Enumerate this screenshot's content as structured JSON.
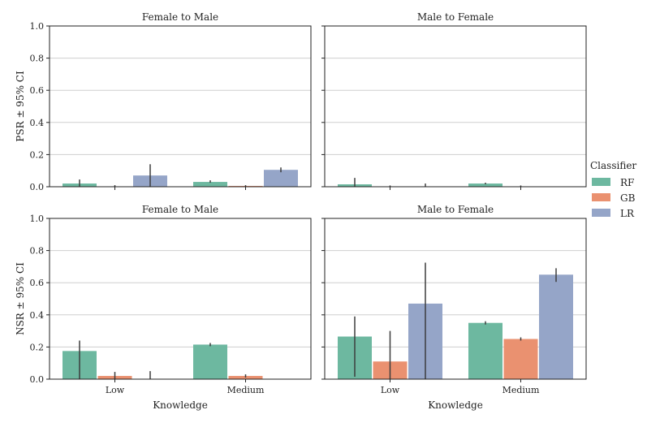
{
  "legend": {
    "title": "Classifier",
    "entries": [
      {
        "name": "RF",
        "color": "#6db8a0"
      },
      {
        "name": "GB",
        "color": "#ea9170"
      },
      {
        "name": "LR",
        "color": "#95a5c8"
      }
    ]
  },
  "chart_data": [
    {
      "type": "bar",
      "title": "Female to Male",
      "ylabel": "PSR ± 95% CI",
      "xlabel": "",
      "ylim": [
        0,
        1
      ],
      "yticks": [
        "0.0",
        "0.2",
        "0.4",
        "0.6",
        "0.8",
        "1.0"
      ],
      "grid": true,
      "categories": [
        "Low",
        "Medium"
      ],
      "series": [
        {
          "name": "RF",
          "values": [
            0.02,
            0.03
          ],
          "ci": [
            [
              0.0,
              0.045
            ],
            [
              0.025,
              0.04
            ]
          ]
        },
        {
          "name": "GB",
          "values": [
            0.0,
            0.005
          ],
          "ci": [
            [
              0.0,
              0.01
            ],
            [
              0.0,
              0.01
            ]
          ]
        },
        {
          "name": "LR",
          "values": [
            0.07,
            0.105
          ],
          "ci": [
            [
              0.0,
              0.14
            ],
            [
              0.09,
              0.12
            ]
          ]
        }
      ]
    },
    {
      "type": "bar",
      "title": "Male to Female",
      "ylabel": "",
      "xlabel": "",
      "ylim": [
        0,
        1
      ],
      "yticks": [
        "0.0",
        "0.2",
        "0.4",
        "0.6",
        "0.8",
        "1.0"
      ],
      "grid": true,
      "categories": [
        "Low",
        "Medium"
      ],
      "series": [
        {
          "name": "RF",
          "values": [
            0.015,
            0.02
          ],
          "ci": [
            [
              0.0,
              0.055
            ],
            [
              0.015,
              0.025
            ]
          ]
        },
        {
          "name": "GB",
          "values": [
            0.0,
            0.0
          ],
          "ci": [
            [
              0.0,
              0.008
            ],
            [
              0.0,
              0.008
            ]
          ]
        },
        {
          "name": "LR",
          "values": [
            0.0,
            0.0
          ],
          "ci": [
            [
              0.0,
              0.02
            ],
            [
              0.0,
              0.0
            ]
          ]
        }
      ]
    },
    {
      "type": "bar",
      "title": "Female to Male",
      "ylabel": "NSR ± 95% CI",
      "xlabel": "Knowledge",
      "ylim": [
        0,
        1
      ],
      "yticks": [
        "0.0",
        "0.2",
        "0.4",
        "0.6",
        "0.8",
        "1.0"
      ],
      "grid": true,
      "categories": [
        "Low",
        "Medium"
      ],
      "series": [
        {
          "name": "RF",
          "values": [
            0.175,
            0.215
          ],
          "ci": [
            [
              0.0,
              0.24
            ],
            [
              0.205,
              0.225
            ]
          ]
        },
        {
          "name": "GB",
          "values": [
            0.02,
            0.02
          ],
          "ci": [
            [
              0.0,
              0.045
            ],
            [
              0.01,
              0.03
            ]
          ]
        },
        {
          "name": "LR",
          "values": [
            0.0,
            0.0
          ],
          "ci": [
            [
              0.0,
              0.05
            ],
            [
              0.0,
              0.0
            ]
          ]
        }
      ]
    },
    {
      "type": "bar",
      "title": "Male to Female",
      "ylabel": "",
      "xlabel": "Knowledge",
      "ylim": [
        0,
        1
      ],
      "yticks": [
        "0.0",
        "0.2",
        "0.4",
        "0.6",
        "0.8",
        "1.0"
      ],
      "grid": true,
      "categories": [
        "Low",
        "Medium"
      ],
      "series": [
        {
          "name": "RF",
          "values": [
            0.265,
            0.35
          ],
          "ci": [
            [
              0.015,
              0.39
            ],
            [
              0.34,
              0.36
            ]
          ]
        },
        {
          "name": "GB",
          "values": [
            0.11,
            0.25
          ],
          "ci": [
            [
              0.0,
              0.3
            ],
            [
              0.24,
              0.26
            ]
          ]
        },
        {
          "name": "LR",
          "values": [
            0.47,
            0.65
          ],
          "ci": [
            [
              0.0,
              0.725
            ],
            [
              0.605,
              0.69
            ]
          ]
        }
      ]
    }
  ]
}
